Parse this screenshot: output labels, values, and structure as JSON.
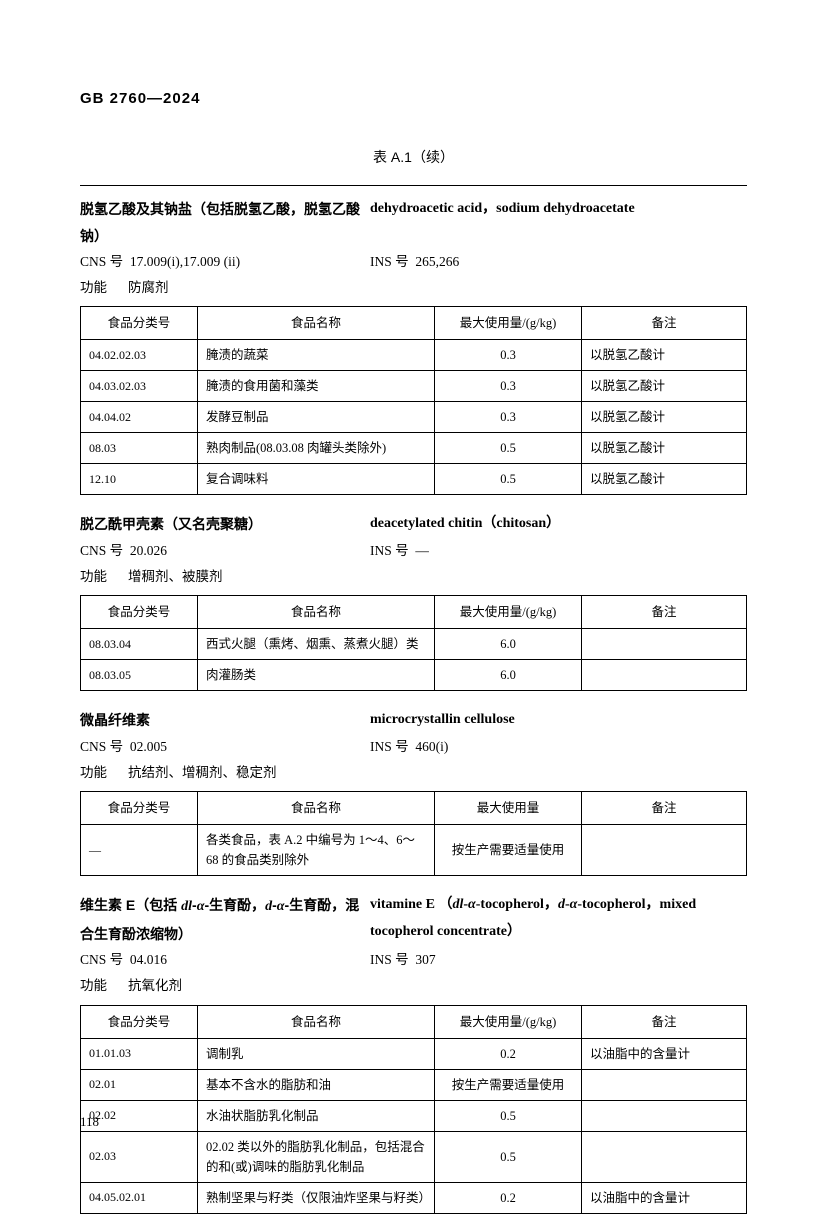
{
  "standard_code": "GB 2760—2024",
  "table_title": "表 A.1（续）",
  "page_number": "118",
  "columns": {
    "code": "食品分类号",
    "name": "食品名称",
    "max_gkg": "最大使用量/(g/kg)",
    "max_plain": "最大使用量",
    "note": "备注"
  },
  "labels": {
    "cns": "CNS 号",
    "ins": "INS 号",
    "func": "功能"
  },
  "sections": [
    {
      "name_cn": "脱氢乙酸及其钠盐（包括脱氢乙酸，脱氢乙酸钠）",
      "name_en": "dehydroacetic acid，sodium dehydroacetate",
      "cns": "17.009(i),17.009 (ii)",
      "ins": "265,266",
      "func": "防腐剂",
      "max_header": "max_gkg",
      "rows": [
        {
          "code": "04.02.02.03",
          "name": "腌渍的蔬菜",
          "max": "0.3",
          "note": "以脱氢乙酸计"
        },
        {
          "code": "04.03.02.03",
          "name": "腌渍的食用菌和藻类",
          "max": "0.3",
          "note": "以脱氢乙酸计"
        },
        {
          "code": "04.04.02",
          "name": "发酵豆制品",
          "max": "0.3",
          "note": "以脱氢乙酸计"
        },
        {
          "code": "08.03",
          "name": "熟肉制品(08.03.08 肉罐头类除外)",
          "max": "0.5",
          "note": "以脱氢乙酸计"
        },
        {
          "code": "12.10",
          "name": "复合调味料",
          "max": "0.5",
          "note": "以脱氢乙酸计"
        }
      ]
    },
    {
      "name_cn": "脱乙酰甲壳素（又名壳聚糖）",
      "name_en": "deacetylated chitin（chitosan）",
      "cns": "20.026",
      "ins": "—",
      "func": "增稠剂、被膜剂",
      "max_header": "max_gkg",
      "rows": [
        {
          "code": "08.03.04",
          "name": "西式火腿（熏烤、烟熏、蒸煮火腿）类",
          "max": "6.0",
          "note": ""
        },
        {
          "code": "08.03.05",
          "name": "肉灌肠类",
          "max": "6.0",
          "note": ""
        }
      ]
    },
    {
      "name_cn": "微晶纤维素",
      "name_en": "microcrystallin cellulose",
      "cns": "02.005",
      "ins": "460(i)",
      "func": "抗结剂、增稠剂、稳定剂",
      "max_header": "max_plain",
      "rows": [
        {
          "code": "—",
          "name": "各类食品，表 A.2 中编号为 1～4、6～68 的食品类别除外",
          "max": "按生产需要适量使用",
          "max_cn": true,
          "note": ""
        }
      ]
    },
    {
      "name_cn_html": "维生素 E（包括 <span class='italic roman'>dl</span>-<span class='italic roman'>α</span>-生育酚，<span class='italic roman'>d</span>-<span class='italic roman'>α</span>-生育酚，混合生育酚浓缩物）",
      "name_en_html": "vitamine E （<span class='italic'>dl</span>-<span class='italic'>α</span>-tocopherol，<span class='italic'>d</span>-<span class='italic'>α</span>-tocopherol，mixed tocopherol concentrate）",
      "cns": "04.016",
      "ins": "307",
      "func": "抗氧化剂",
      "max_header": "max_gkg",
      "rows": [
        {
          "code": "01.01.03",
          "name": "调制乳",
          "max": "0.2",
          "note": "以油脂中的含量计"
        },
        {
          "code": "02.01",
          "name": "基本不含水的脂肪和油",
          "max": "按生产需要适量使用",
          "max_cn": true,
          "note": ""
        },
        {
          "code": "02.02",
          "name": "水油状脂肪乳化制品",
          "max": "0.5",
          "note": ""
        },
        {
          "code": "02.03",
          "name": "02.02 类以外的脂肪乳化制品，包括混合的和(或)调味的脂肪乳化制品",
          "max": "0.5",
          "note": ""
        },
        {
          "code": "04.05.02.01",
          "name": "熟制坚果与籽类（仅限油炸坚果与籽类）",
          "max": "0.2",
          "note": "以油脂中的含量计"
        }
      ]
    }
  ]
}
